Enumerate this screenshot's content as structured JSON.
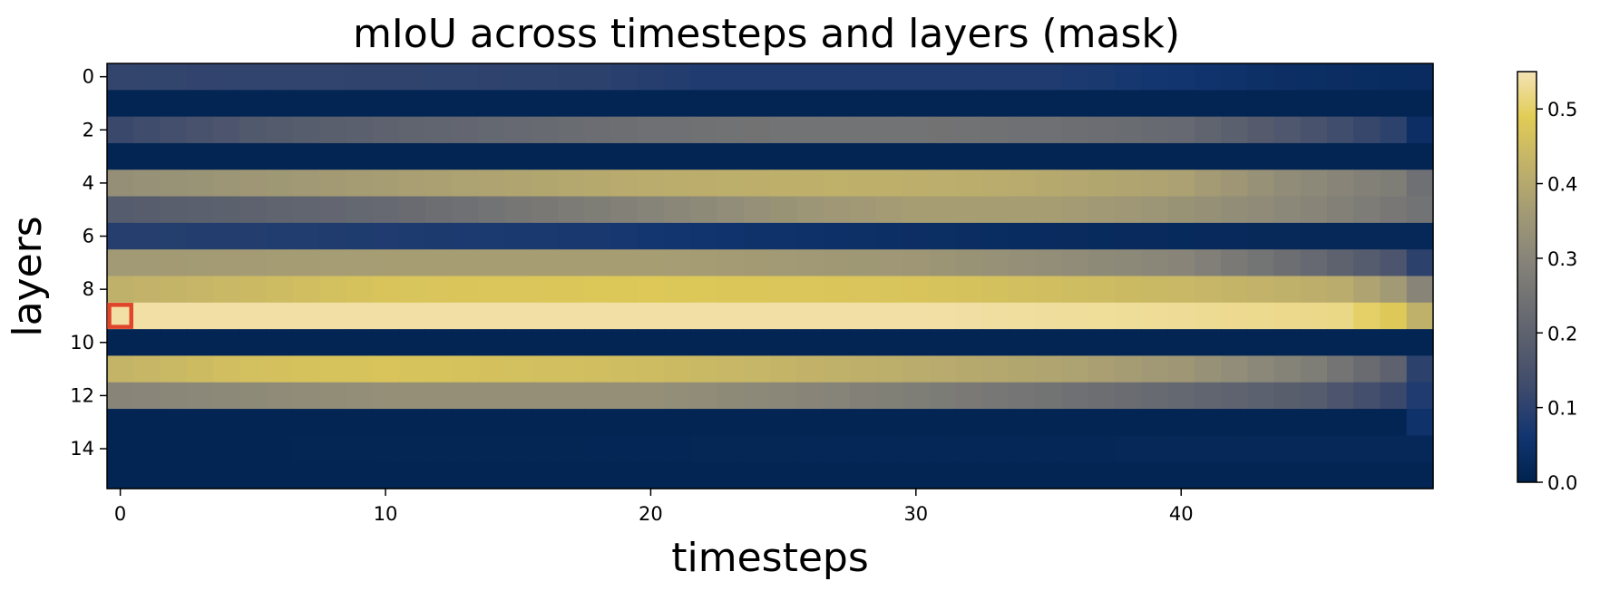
{
  "chart_data": {
    "type": "heatmap",
    "title": "mIoU across timesteps and layers (mask)",
    "xlabel": "timesteps",
    "ylabel": "layers",
    "n_cols": 50,
    "n_rows": 16,
    "x_ticks": [
      0,
      10,
      20,
      30,
      40
    ],
    "y_ticks": [
      0,
      2,
      4,
      6,
      8,
      10,
      12,
      14
    ],
    "colorbar": {
      "min": 0.0,
      "max": 0.55,
      "ticks": [
        0.0,
        0.1,
        0.2,
        0.3,
        0.4,
        0.5
      ],
      "tick_labels": [
        "0.0",
        "0.1",
        "0.2",
        "0.3",
        "0.4",
        "0.5"
      ],
      "colormap": "cividis-like",
      "stops": [
        "#00224e",
        "#123570",
        "#3b496c",
        "#575d6d",
        "#707173",
        "#8a8779",
        "#a59c74",
        "#c3b369",
        "#e1cc55",
        "#f4e3b5"
      ]
    },
    "highlight": {
      "row": 9,
      "col": 0,
      "color": "#e0452a"
    },
    "row_profiles": [
      [
        [
          0,
          0.11
        ],
        [
          18,
          0.1
        ],
        [
          22,
          0.08
        ],
        [
          35,
          0.08
        ],
        [
          40,
          0.06
        ],
        [
          44,
          0.04
        ],
        [
          49,
          0.03
        ]
      ],
      [
        [
          0,
          0.01
        ],
        [
          49,
          0.01
        ]
      ],
      [
        [
          0,
          0.12
        ],
        [
          5,
          0.17
        ],
        [
          10,
          0.2
        ],
        [
          15,
          0.22
        ],
        [
          20,
          0.24
        ],
        [
          25,
          0.25
        ],
        [
          30,
          0.25
        ],
        [
          35,
          0.24
        ],
        [
          40,
          0.22
        ],
        [
          45,
          0.15
        ],
        [
          48,
          0.1
        ],
        [
          49,
          0.04
        ]
      ],
      [
        [
          0,
          0.01
        ],
        [
          49,
          0.01
        ]
      ],
      [
        [
          0,
          0.33
        ],
        [
          10,
          0.37
        ],
        [
          20,
          0.41
        ],
        [
          27,
          0.42
        ],
        [
          33,
          0.41
        ],
        [
          40,
          0.38
        ],
        [
          44,
          0.32
        ],
        [
          48,
          0.28
        ],
        [
          49,
          0.24
        ]
      ],
      [
        [
          0,
          0.18
        ],
        [
          5,
          0.2
        ],
        [
          10,
          0.22
        ],
        [
          18,
          0.28
        ],
        [
          25,
          0.34
        ],
        [
          30,
          0.37
        ],
        [
          35,
          0.37
        ],
        [
          40,
          0.34
        ],
        [
          45,
          0.3
        ],
        [
          49,
          0.25
        ]
      ],
      [
        [
          0,
          0.09
        ],
        [
          10,
          0.08
        ],
        [
          18,
          0.07
        ],
        [
          25,
          0.05
        ],
        [
          35,
          0.03
        ],
        [
          45,
          0.02
        ],
        [
          49,
          0.02
        ]
      ],
      [
        [
          0,
          0.36
        ],
        [
          10,
          0.37
        ],
        [
          20,
          0.37
        ],
        [
          30,
          0.35
        ],
        [
          40,
          0.3
        ],
        [
          45,
          0.22
        ],
        [
          48,
          0.16
        ],
        [
          49,
          0.1
        ]
      ],
      [
        [
          0,
          0.42
        ],
        [
          10,
          0.47
        ],
        [
          20,
          0.48
        ],
        [
          30,
          0.47
        ],
        [
          40,
          0.44
        ],
        [
          46,
          0.41
        ],
        [
          48,
          0.36
        ],
        [
          49,
          0.3
        ]
      ],
      [
        [
          0,
          0.54
        ],
        [
          10,
          0.54
        ],
        [
          20,
          0.54
        ],
        [
          30,
          0.54
        ],
        [
          40,
          0.53
        ],
        [
          46,
          0.52
        ],
        [
          48,
          0.48
        ],
        [
          49,
          0.42
        ]
      ],
      [
        [
          0,
          0.01
        ],
        [
          49,
          0.01
        ]
      ],
      [
        [
          0,
          0.43
        ],
        [
          5,
          0.46
        ],
        [
          10,
          0.47
        ],
        [
          20,
          0.45
        ],
        [
          30,
          0.41
        ],
        [
          35,
          0.39
        ],
        [
          40,
          0.35
        ],
        [
          45,
          0.28
        ],
        [
          48,
          0.2
        ],
        [
          49,
          0.1
        ]
      ],
      [
        [
          0,
          0.3
        ],
        [
          10,
          0.33
        ],
        [
          20,
          0.33
        ],
        [
          30,
          0.28
        ],
        [
          38,
          0.23
        ],
        [
          45,
          0.18
        ],
        [
          48,
          0.12
        ],
        [
          49,
          0.08
        ]
      ],
      [
        [
          0,
          0.01
        ],
        [
          48,
          0.01
        ],
        [
          49,
          0.05
        ]
      ],
      [
        [
          0,
          0.01
        ],
        [
          49,
          0.02
        ]
      ],
      [
        [
          0,
          0.01
        ],
        [
          49,
          0.01
        ]
      ]
    ]
  }
}
